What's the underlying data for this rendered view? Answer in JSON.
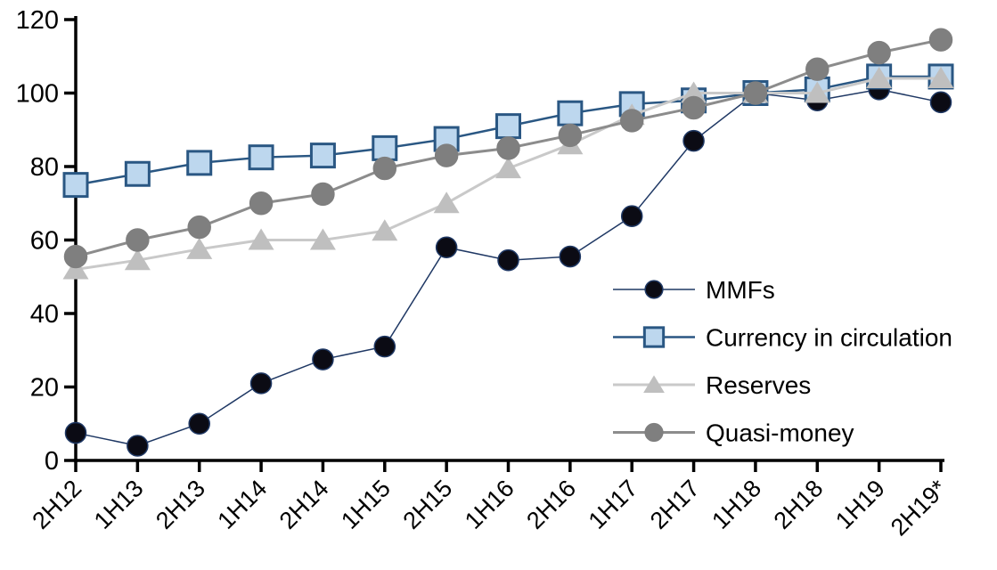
{
  "chart_data": {
    "type": "line",
    "title": "",
    "categories": [
      "2H12",
      "1H13",
      "2H13",
      "1H14",
      "2H14",
      "1H15",
      "2H15",
      "1H16",
      "2H16",
      "1H17",
      "2H17",
      "1H18",
      "2H18",
      "1H19",
      "2H19*"
    ],
    "series": [
      {
        "name": "MMFs",
        "marker": "circle",
        "marker_color": "#0b0b14",
        "marker_border_color": "#1f3864",
        "line_color": "#1f3864",
        "values": [
          7.5,
          4,
          10,
          21,
          27.5,
          31,
          58,
          54.5,
          55.5,
          66.5,
          87,
          100,
          98,
          101,
          97.5
        ]
      },
      {
        "name": "Currency in circulation",
        "marker": "square",
        "marker_color": "#bdd7ee",
        "marker_border_color": "#2a5783",
        "line_color": "#2a5783",
        "values": [
          75,
          78,
          81,
          82.5,
          83,
          85,
          87.5,
          91,
          94.5,
          97,
          98,
          100,
          101,
          104.5,
          104.5
        ]
      },
      {
        "name": "Reserves",
        "marker": "triangle",
        "marker_color": "#bfbfbf",
        "marker_border_color": "#bfbfbf",
        "line_color": "#c9c9c9",
        "values": [
          52,
          54.5,
          57.5,
          60,
          60,
          62.5,
          70,
          79.5,
          86,
          94,
          100,
          100,
          100,
          104,
          104
        ]
      },
      {
        "name": "Quasi-money",
        "marker": "circle",
        "marker_color": "#7f7f7f",
        "marker_border_color": "#7f7f7f",
        "line_color": "#8c8c8c",
        "values": [
          55.5,
          60,
          63.5,
          70,
          72.5,
          79.5,
          83,
          85,
          88.5,
          92.5,
          96,
          100,
          106.5,
          111,
          114.5
        ]
      }
    ],
    "y_axis": {
      "min": 0,
      "max": 120,
      "step": 20,
      "tick_labels": [
        "0",
        "20",
        "40",
        "60",
        "80",
        "100",
        "120"
      ]
    },
    "x_axis": {
      "label_rotation_deg": -45
    },
    "legend": {
      "position": "inside-right",
      "entries": [
        "MMFs",
        "Currency in circulation",
        "Reserves",
        "Quasi-money"
      ]
    },
    "grid": false,
    "axis_color": "#000000"
  }
}
